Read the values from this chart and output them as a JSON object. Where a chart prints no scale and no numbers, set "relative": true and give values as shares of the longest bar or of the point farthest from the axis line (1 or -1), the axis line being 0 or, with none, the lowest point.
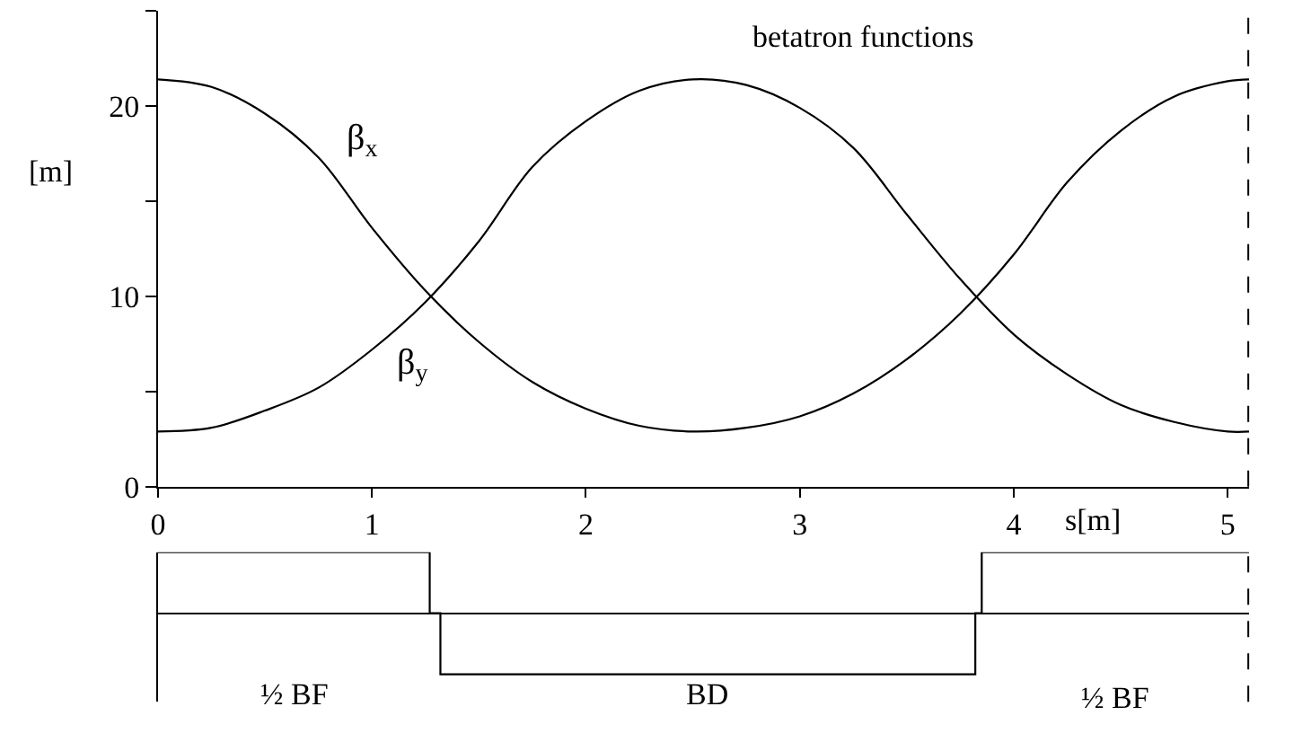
{
  "chart_data": [
    {
      "type": "line",
      "title": "betatron functions",
      "xlabel": "s[m]",
      "ylabel": "[m]",
      "x": [
        0,
        0.25,
        0.5,
        0.75,
        1.0,
        1.25,
        1.5,
        1.75,
        2.0,
        2.25,
        2.5,
        2.75,
        3.0,
        3.25,
        3.5,
        3.75,
        4.0,
        4.25,
        4.5,
        4.75,
        5.0,
        5.1
      ],
      "series": [
        {
          "name": "β$_{x}$",
          "color": "#000000",
          "values": [
            21.4,
            21.0,
            19.6,
            17.3,
            13.6,
            10.3,
            7.6,
            5.5,
            4.1,
            3.2,
            2.9,
            3.1,
            3.7,
            4.9,
            6.7,
            9.1,
            12.2,
            16.0,
            18.7,
            20.5,
            21.3,
            21.4
          ]
        },
        {
          "name": "β$_{y}$",
          "color": "#000000",
          "values": [
            2.9,
            3.1,
            4.0,
            5.2,
            7.2,
            9.7,
            12.9,
            16.8,
            19.2,
            20.8,
            21.4,
            21.1,
            19.9,
            17.8,
            14.3,
            10.9,
            8.0,
            5.9,
            4.3,
            3.4,
            2.9,
            2.9
          ]
        }
      ],
      "xlim": [
        0,
        5.1
      ],
      "xticks": [
        0,
        1,
        2,
        3,
        4,
        5
      ],
      "ylim": [
        0,
        25
      ],
      "yticks": [
        0,
        {
          "value": 5,
          "label": null
        },
        10,
        {
          "value": 15,
          "label": null
        },
        20,
        {
          "value": 25,
          "label": null
        }
      ],
      "ref_lines": [
        {
          "axis": "x",
          "value": 5.1,
          "color": "#000000",
          "line_style": "dashed"
        }
      ],
      "legend": false,
      "marker": "none",
      "line_style": "solid"
    },
    {
      "type": "step",
      "relative": true,
      "color": "#000000",
      "x": [
        0,
        1.27,
        1.32,
        3.82,
        3.85,
        5.1
      ],
      "values": [
        1,
        0,
        -1,
        0,
        1,
        1
      ],
      "xlim": [
        0,
        5.1
      ],
      "tick_labels": false,
      "annotations": [
        "½ BF",
        "BD",
        "½ BF"
      ],
      "ref_lines": [
        {
          "axis": "x",
          "value": 5.1,
          "color": "#000000",
          "line_style": "dashed"
        }
      ],
      "legend": false,
      "marker": "none",
      "line_style": "solid"
    }
  ]
}
